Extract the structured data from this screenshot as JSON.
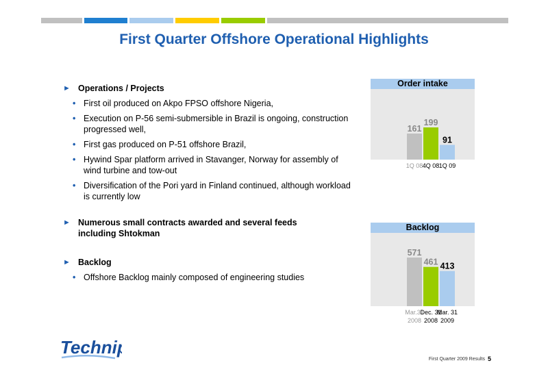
{
  "title": "First Quarter Offshore Operational Highlights",
  "sections": [
    {
      "heading": "Operations / Projects",
      "bullets": [
        "First oil produced on Akpo FPSO offshore Nigeria,",
        "Execution on P-56 semi-submersible in Brazil is ongoing, construction progressed well,",
        "First gas produced on P-51 offshore Brazil,",
        "Hywind Spar platform arrived in Stavanger, Norway for assembly of wind turbine and tow-out",
        "Diversification of the Pori yard in Finland continued, although workload is currently low"
      ]
    },
    {
      "heading": "Numerous small contracts awarded and several feeds including Shtokman",
      "bullets": []
    },
    {
      "heading": "Backlog",
      "bullets": [
        "Offshore Backlog mainly composed of engineering studies"
      ]
    }
  ],
  "chart_data": [
    {
      "type": "bar",
      "title": "Order intake",
      "categories": [
        "1Q 08",
        "4Q 08",
        "1Q 09"
      ],
      "values": [
        161,
        199,
        91
      ],
      "colors": [
        "#c0c0c0",
        "#99cc00",
        "#aaccee"
      ]
    },
    {
      "type": "bar",
      "title": "Backlog",
      "categories": [
        "Mar.31 2008",
        "Dec. 31 2008",
        "Mar. 31 2009"
      ],
      "category_lines": [
        [
          "Mar.31",
          "2008"
        ],
        [
          "Dec. 31",
          "2008"
        ],
        [
          "Mar. 31",
          "2009"
        ]
      ],
      "values": [
        571,
        461,
        413
      ],
      "colors": [
        "#c0c0c0",
        "#99cc00",
        "#aaccee"
      ]
    }
  ],
  "top_bar_colors": [
    "#c0c0c0",
    "#1f7fd0",
    "#aaccee",
    "#ffcc00",
    "#99cc00",
    "#c0c0c0"
  ],
  "logo_text": "Technip",
  "footer": {
    "label": "First Quarter 2009 Results",
    "page": "5"
  }
}
